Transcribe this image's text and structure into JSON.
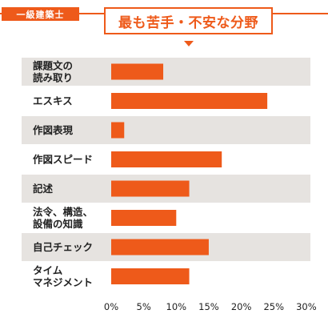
{
  "header": {
    "badge": "一級建築士",
    "title": "最も苦手・不安な分野"
  },
  "colors": {
    "accent": "#ee5a1a",
    "band": "#e6e3e0",
    "text": "#222222"
  },
  "chart_data": {
    "type": "bar",
    "orientation": "horizontal",
    "title": "最も苦手・不安な分野",
    "categories": [
      [
        "課題文の",
        "読み取り"
      ],
      [
        "エスキス"
      ],
      [
        "作図表現"
      ],
      [
        "作図スピード"
      ],
      [
        "記述"
      ],
      [
        "法令、構造、",
        "設備の知識"
      ],
      [
        "自己チェック"
      ],
      [
        "タイム",
        "マネジメント"
      ]
    ],
    "values": [
      8,
      24,
      2,
      17,
      12,
      10,
      15,
      12
    ],
    "unit": "%",
    "xlim": [
      0,
      30
    ],
    "xticks": [
      "0%",
      "5%",
      "10%",
      "15%",
      "20%",
      "25%",
      "30%"
    ],
    "alternating_row_bands": true,
    "grid": false
  }
}
